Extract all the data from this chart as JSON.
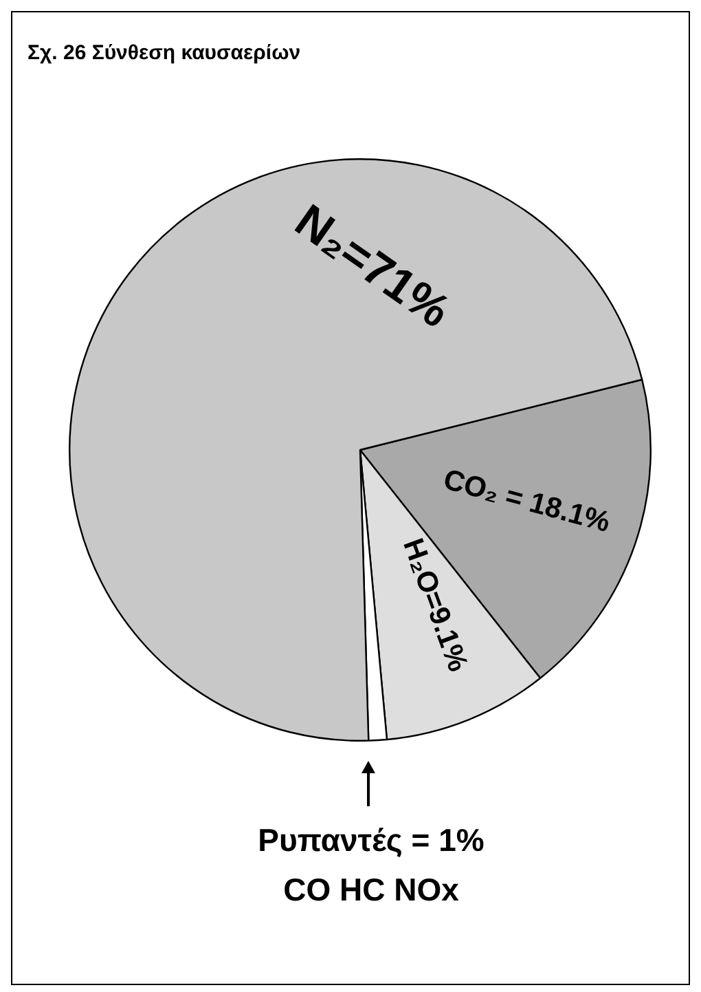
{
  "chart_data": {
    "type": "pie",
    "title": "Σχ. 26  Σύνθεση καυσαερίων",
    "categories": [
      null,
      null,
      null,
      null
    ],
    "values": [
      18.1,
      9.1,
      1,
      71
    ],
    "colors": [
      "#a9a9a9",
      "#dedede",
      "#ffffff",
      "#c8c8c8"
    ],
    "value_labels": [
      "CO₂ = 18.1%",
      "H₂O=9.1%",
      "Ρυπαντές = 1%",
      "N₂=71%"
    ],
    "annotations": [
      "CO HC NOx"
    ]
  }
}
